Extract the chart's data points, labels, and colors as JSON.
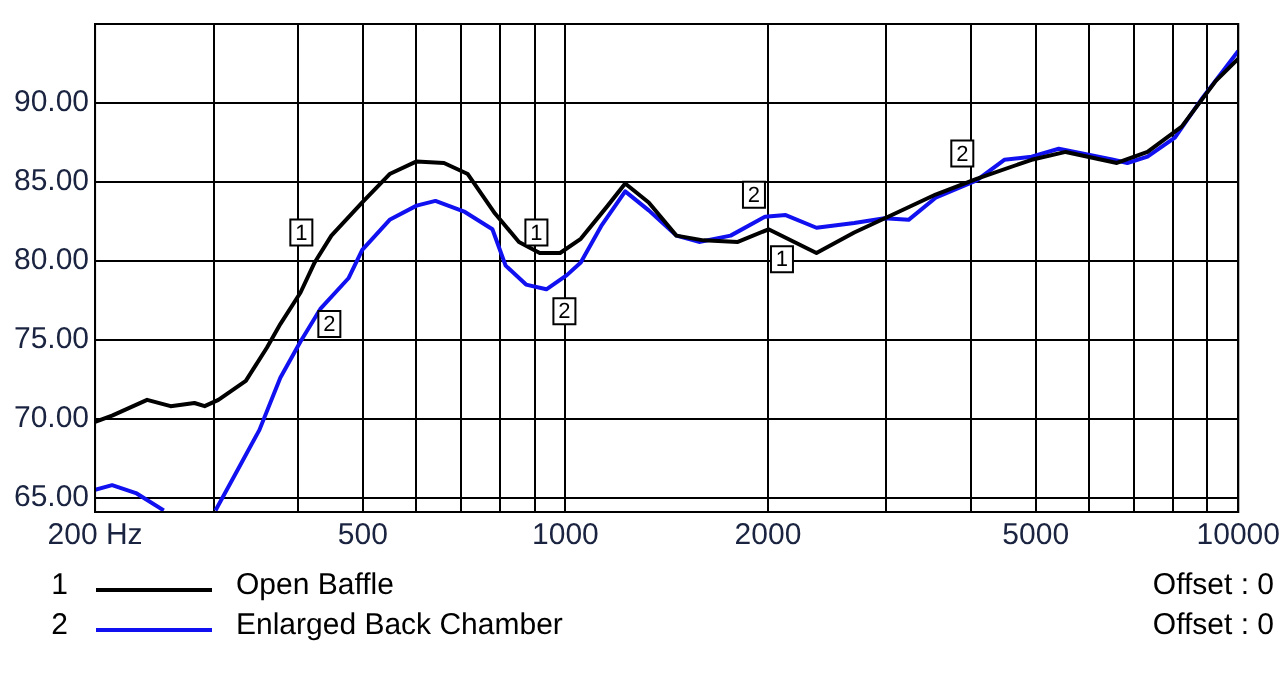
{
  "chart_data": {
    "type": "line",
    "xlim": [
      200,
      10000
    ],
    "ylim": [
      64.1,
      95
    ],
    "log": "x",
    "grid": true,
    "legend": "bottom",
    "marker": "none",
    "line_style": "solid",
    "xticks": [
      {
        "value": 200,
        "label": "200 Hz"
      },
      {
        "value": 300,
        "label": null
      },
      {
        "value": 400,
        "label": null
      },
      500,
      {
        "value": 600,
        "label": null
      },
      {
        "value": 700,
        "label": null
      },
      {
        "value": 800,
        "label": null
      },
      {
        "value": 900,
        "label": null
      },
      1000,
      2000,
      {
        "value": 3000,
        "label": null
      },
      {
        "value": 4000,
        "label": null
      },
      5000,
      {
        "value": 6000,
        "label": null
      },
      {
        "value": 7000,
        "label": null
      },
      {
        "value": 8000,
        "label": null
      },
      {
        "value": 9000,
        "label": null
      },
      10000
    ],
    "yticks": [
      {
        "value": 65,
        "label": "65.00"
      },
      {
        "value": 70,
        "label": "70.00"
      },
      {
        "value": 75,
        "label": "75.00"
      },
      {
        "value": 80,
        "label": "80.00"
      },
      {
        "value": 85,
        "label": "85.00"
      },
      {
        "value": 90,
        "label": "90.00"
      }
    ],
    "series": [
      {
        "name": "Open Baffle",
        "color": "#000000",
        "x": [
          200,
          212,
          239,
          259,
          281,
          291,
          305,
          335,
          360,
          377,
          404,
          424,
          449,
          499,
          548,
          601,
          660,
          716,
          786,
          853,
          916,
          982,
          1054,
          1156,
          1227,
          1330,
          1462,
          1604,
          1804,
          2004,
          2361,
          2687,
          3090,
          3550,
          4084,
          4930,
          5540,
          6600,
          7330,
          8240,
          9260,
          10000
        ],
        "values": [
          69.8,
          70.2,
          71.2,
          70.8,
          71.0,
          70.8,
          71.2,
          72.4,
          74.5,
          76.0,
          78.0,
          79.9,
          81.6,
          83.7,
          85.5,
          86.3,
          86.2,
          85.5,
          83.0,
          81.2,
          80.5,
          80.5,
          81.4,
          83.5,
          84.9,
          83.7,
          81.6,
          81.3,
          81.2,
          82.0,
          80.5,
          81.8,
          83.0,
          84.2,
          85.2,
          86.4,
          86.9,
          86.2,
          86.9,
          88.5,
          91.4,
          92.8
        ]
      },
      {
        "name": "Enlarged Back Chamber",
        "color": "#1010f0",
        "x": [
          200,
          212,
          230,
          253,
          280,
          302,
          328,
          351,
          377,
          404,
          433,
          476,
          499,
          548,
          601,
          641,
          709,
          779,
          815,
          874,
          937,
          1005,
          1054,
          1130,
          1227,
          1330,
          1462,
          1580,
          1760,
          1980,
          2125,
          2361,
          2687,
          2980,
          3236,
          3550,
          4084,
          4490,
          4930,
          5410,
          6520,
          6840,
          7330,
          8050,
          8840,
          10000
        ],
        "values": [
          65.5,
          65.8,
          65.3,
          64.2,
          null,
          64.2,
          67.0,
          69.3,
          72.6,
          74.9,
          77.0,
          78.9,
          80.7,
          82.6,
          83.5,
          83.8,
          83.1,
          82.0,
          79.7,
          78.5,
          78.2,
          79.1,
          79.9,
          82.2,
          84.4,
          83.2,
          81.6,
          81.2,
          81.6,
          82.8,
          82.9,
          82.1,
          82.4,
          82.7,
          82.6,
          84.0,
          85.1,
          86.4,
          86.6,
          87.1,
          86.4,
          86.2,
          86.6,
          87.8,
          90.3,
          93.3
        ]
      }
    ],
    "annotations": [
      {
        "text": "1",
        "x": 425,
        "y": 80.4
      },
      {
        "text": "2",
        "x": 425,
        "y": 77.4
      },
      {
        "text": "1",
        "x": 950,
        "y": 80.4
      },
      {
        "text": "2",
        "x": 950,
        "y": 78.2
      },
      {
        "text": "1",
        "x": 2000,
        "y": 81.5
      },
      {
        "text": "2",
        "x": 2000,
        "y": 82.8
      },
      {
        "text": "2",
        "x": 4080,
        "y": 85.4
      },
      "Offset : 0",
      "Offset : 0"
    ]
  }
}
